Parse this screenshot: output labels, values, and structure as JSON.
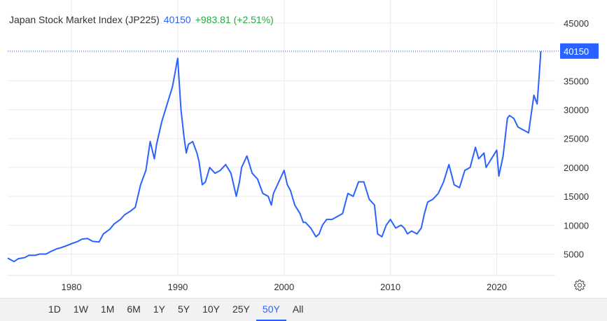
{
  "header": {
    "title": "Japan Stock Market Index (JP225)",
    "price": "40150",
    "change": "+983.81 (+2.51%)"
  },
  "last_price_label": "40150",
  "ranges": [
    "1D",
    "1W",
    "1M",
    "6M",
    "1Y",
    "5Y",
    "10Y",
    "25Y",
    "50Y",
    "All"
  ],
  "active_range": "50Y",
  "settings_icon": "gear-icon",
  "colors": {
    "line": "#2962ff",
    "positive": "#22ab3f",
    "price_badge": "#2962ff",
    "grid": "#ebebeb"
  },
  "chart_data": {
    "type": "line",
    "series": [
      {
        "x": [
          1974.0,
          1974.6,
          1975.0,
          1975.6,
          1976.0,
          1976.6,
          1977.0,
          1977.6,
          1978.0,
          1978.6,
          1979.0,
          1979.6,
          1980.0,
          1980.6,
          1981.0,
          1981.5,
          1982.0,
          1982.6,
          1983.0,
          1983.6,
          1984.0,
          1984.6,
          1985.0,
          1985.6,
          1986.0,
          1986.5,
          1987.0,
          1987.4,
          1987.8,
          1988.0,
          1988.5,
          1989.0,
          1989.5,
          1989.99,
          1990.3,
          1990.6,
          1990.8,
          1991.0,
          1991.4,
          1991.8,
          1992.0,
          1992.3,
          1992.6,
          1993.0,
          1993.5,
          1994.0,
          1994.5,
          1995.0,
          1995.5,
          1995.8,
          1996.0,
          1996.5,
          1997.0,
          1997.5,
          1998.0,
          1998.5,
          1998.8,
          1999.0,
          1999.5,
          2000.0,
          2000.3,
          2000.6,
          2001.0,
          2001.5,
          2001.8,
          2002.0,
          2002.5,
          2003.0,
          2003.3,
          2003.6,
          2004.0,
          2004.5,
          2005.0,
          2005.5,
          2006.0,
          2006.5,
          2007.0,
          2007.5,
          2008.0,
          2008.5,
          2008.8,
          2009.2,
          2009.6,
          2010.0,
          2010.5,
          2011.0,
          2011.3,
          2011.6,
          2012.0,
          2012.5,
          2012.9,
          2013.2,
          2013.5,
          2014.0,
          2014.5,
          2015.0,
          2015.5,
          2016.0,
          2016.5,
          2017.0,
          2017.5,
          2018.0,
          2018.3,
          2018.8,
          2019.0,
          2019.5,
          2020.0,
          2020.2,
          2020.6,
          2021.0,
          2021.2,
          2021.6,
          2022.0,
          2022.5,
          2023.0,
          2023.5,
          2023.8,
          2024.0,
          2024.15
        ],
        "values": [
          4300,
          3700,
          4200,
          4400,
          4800,
          4800,
          5000,
          5000,
          5400,
          5900,
          6100,
          6500,
          6800,
          7200,
          7600,
          7700,
          7200,
          7100,
          8500,
          9300,
          10200,
          11000,
          11800,
          12500,
          13100,
          17000,
          19500,
          24500,
          21500,
          24000,
          28000,
          31000,
          34000,
          38915,
          30000,
          25000,
          22500,
          24000,
          24500,
          22500,
          21000,
          17000,
          17500,
          20000,
          19000,
          19500,
          20500,
          19000,
          15000,
          17500,
          20000,
          22000,
          19000,
          18000,
          15500,
          15000,
          13500,
          15500,
          17500,
          19500,
          17000,
          16000,
          13500,
          12000,
          10500,
          10500,
          9500,
          8000,
          8500,
          10000,
          11000,
          11000,
          11500,
          12000,
          15500,
          15000,
          17500,
          17500,
          14500,
          13500,
          8500,
          8000,
          10000,
          11000,
          9500,
          10000,
          9500,
          8500,
          9000,
          8500,
          9500,
          12000,
          14000,
          14500,
          15500,
          17500,
          20500,
          17000,
          16500,
          19500,
          20000,
          23500,
          21500,
          22500,
          20000,
          21500,
          23000,
          18500,
          22000,
          28500,
          29000,
          28500,
          27000,
          26500,
          26000,
          32500,
          31000,
          36000,
          40150
        ]
      }
    ],
    "x_ticks": [
      1980,
      1990,
      2000,
      2010,
      2020
    ],
    "y_ticks": [
      5000,
      10000,
      15000,
      20000,
      25000,
      30000,
      35000,
      40000,
      45000
    ],
    "xlim": [
      1974.0,
      2025.5
    ],
    "ylim": [
      1300,
      49000
    ],
    "y_axis_side": "right",
    "grid": true,
    "last_value": 40150
  }
}
